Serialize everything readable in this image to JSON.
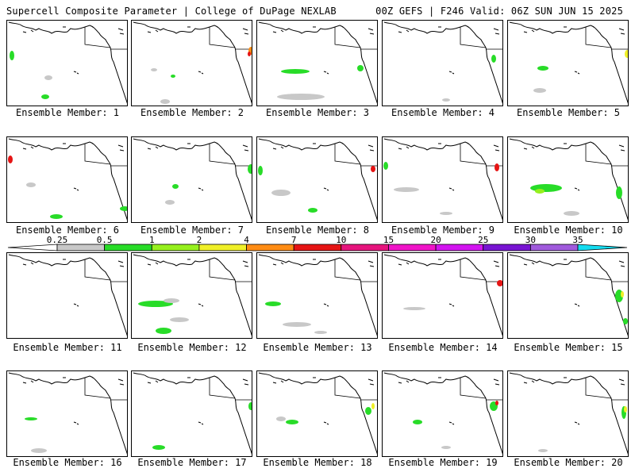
{
  "header": {
    "left_title": "Supercell Composite Parameter | College of DuPage NEXLAB",
    "right_title": "00Z GEFS | F246 Valid: 06Z SUN JUN 15 2025"
  },
  "panels": [
    {
      "label": "Ensemble Member: 1"
    },
    {
      "label": "Ensemble Member: 2"
    },
    {
      "label": "Ensemble Member: 3"
    },
    {
      "label": "Ensemble Member: 4"
    },
    {
      "label": "Ensemble Member: 5"
    },
    {
      "label": "Ensemble Member: 6"
    },
    {
      "label": "Ensemble Member: 7"
    },
    {
      "label": "Ensemble Member: 8"
    },
    {
      "label": "Ensemble Member: 9"
    },
    {
      "label": "Ensemble Member: 10"
    },
    {
      "label": "Ensemble Member: 11"
    },
    {
      "label": "Ensemble Member: 12"
    },
    {
      "label": "Ensemble Member: 13"
    },
    {
      "label": "Ensemble Member: 14"
    },
    {
      "label": "Ensemble Member: 15"
    },
    {
      "label": "Ensemble Member: 16"
    },
    {
      "label": "Ensemble Member: 17"
    },
    {
      "label": "Ensemble Member: 18"
    },
    {
      "label": "Ensemble Member: 19"
    },
    {
      "label": "Ensemble Member: 20"
    }
  ],
  "colorbar": {
    "ticks": [
      "0.25",
      "0.5",
      "1",
      "2",
      "4",
      "7",
      "10",
      "15",
      "20",
      "25",
      "30",
      "35"
    ],
    "colors": [
      "#c8c8c8",
      "#28dc28",
      "#96f01e",
      "#f0f028",
      "#ff8c14",
      "#e61414",
      "#e6147d",
      "#f014c8",
      "#d214f0",
      "#7814d2",
      "#a05adc",
      "#14dcf0"
    ]
  }
}
